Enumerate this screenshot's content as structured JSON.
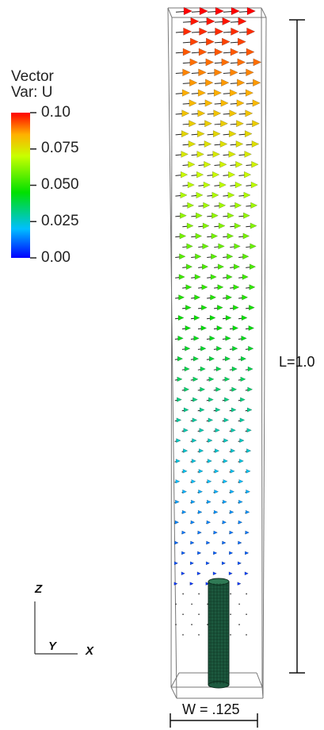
{
  "legend": {
    "title": "Vector",
    "subtitle": "Var: U",
    "ticks": [
      "0.10",
      "0.075",
      "0.050",
      "0.025",
      "0.00"
    ],
    "colorscale": [
      "#0000ff",
      "#00bfff",
      "#00e000",
      "#c8ff00",
      "#ffb000",
      "#ff0000"
    ]
  },
  "domain": {
    "length_label": "L=1.0",
    "width_label": "W = .125",
    "cylinder_color": "#1d5a3f"
  },
  "axes": {
    "z": "Z",
    "y": "Y",
    "x": "X"
  },
  "chart_data": {
    "type": "vector-field",
    "variable": "U",
    "color_range": [
      0.0,
      0.1
    ],
    "length": 1.0,
    "width": 0.125,
    "profile": "velocity increases with height from 0.00 near the bottom obstacle to 0.10 at the top"
  }
}
